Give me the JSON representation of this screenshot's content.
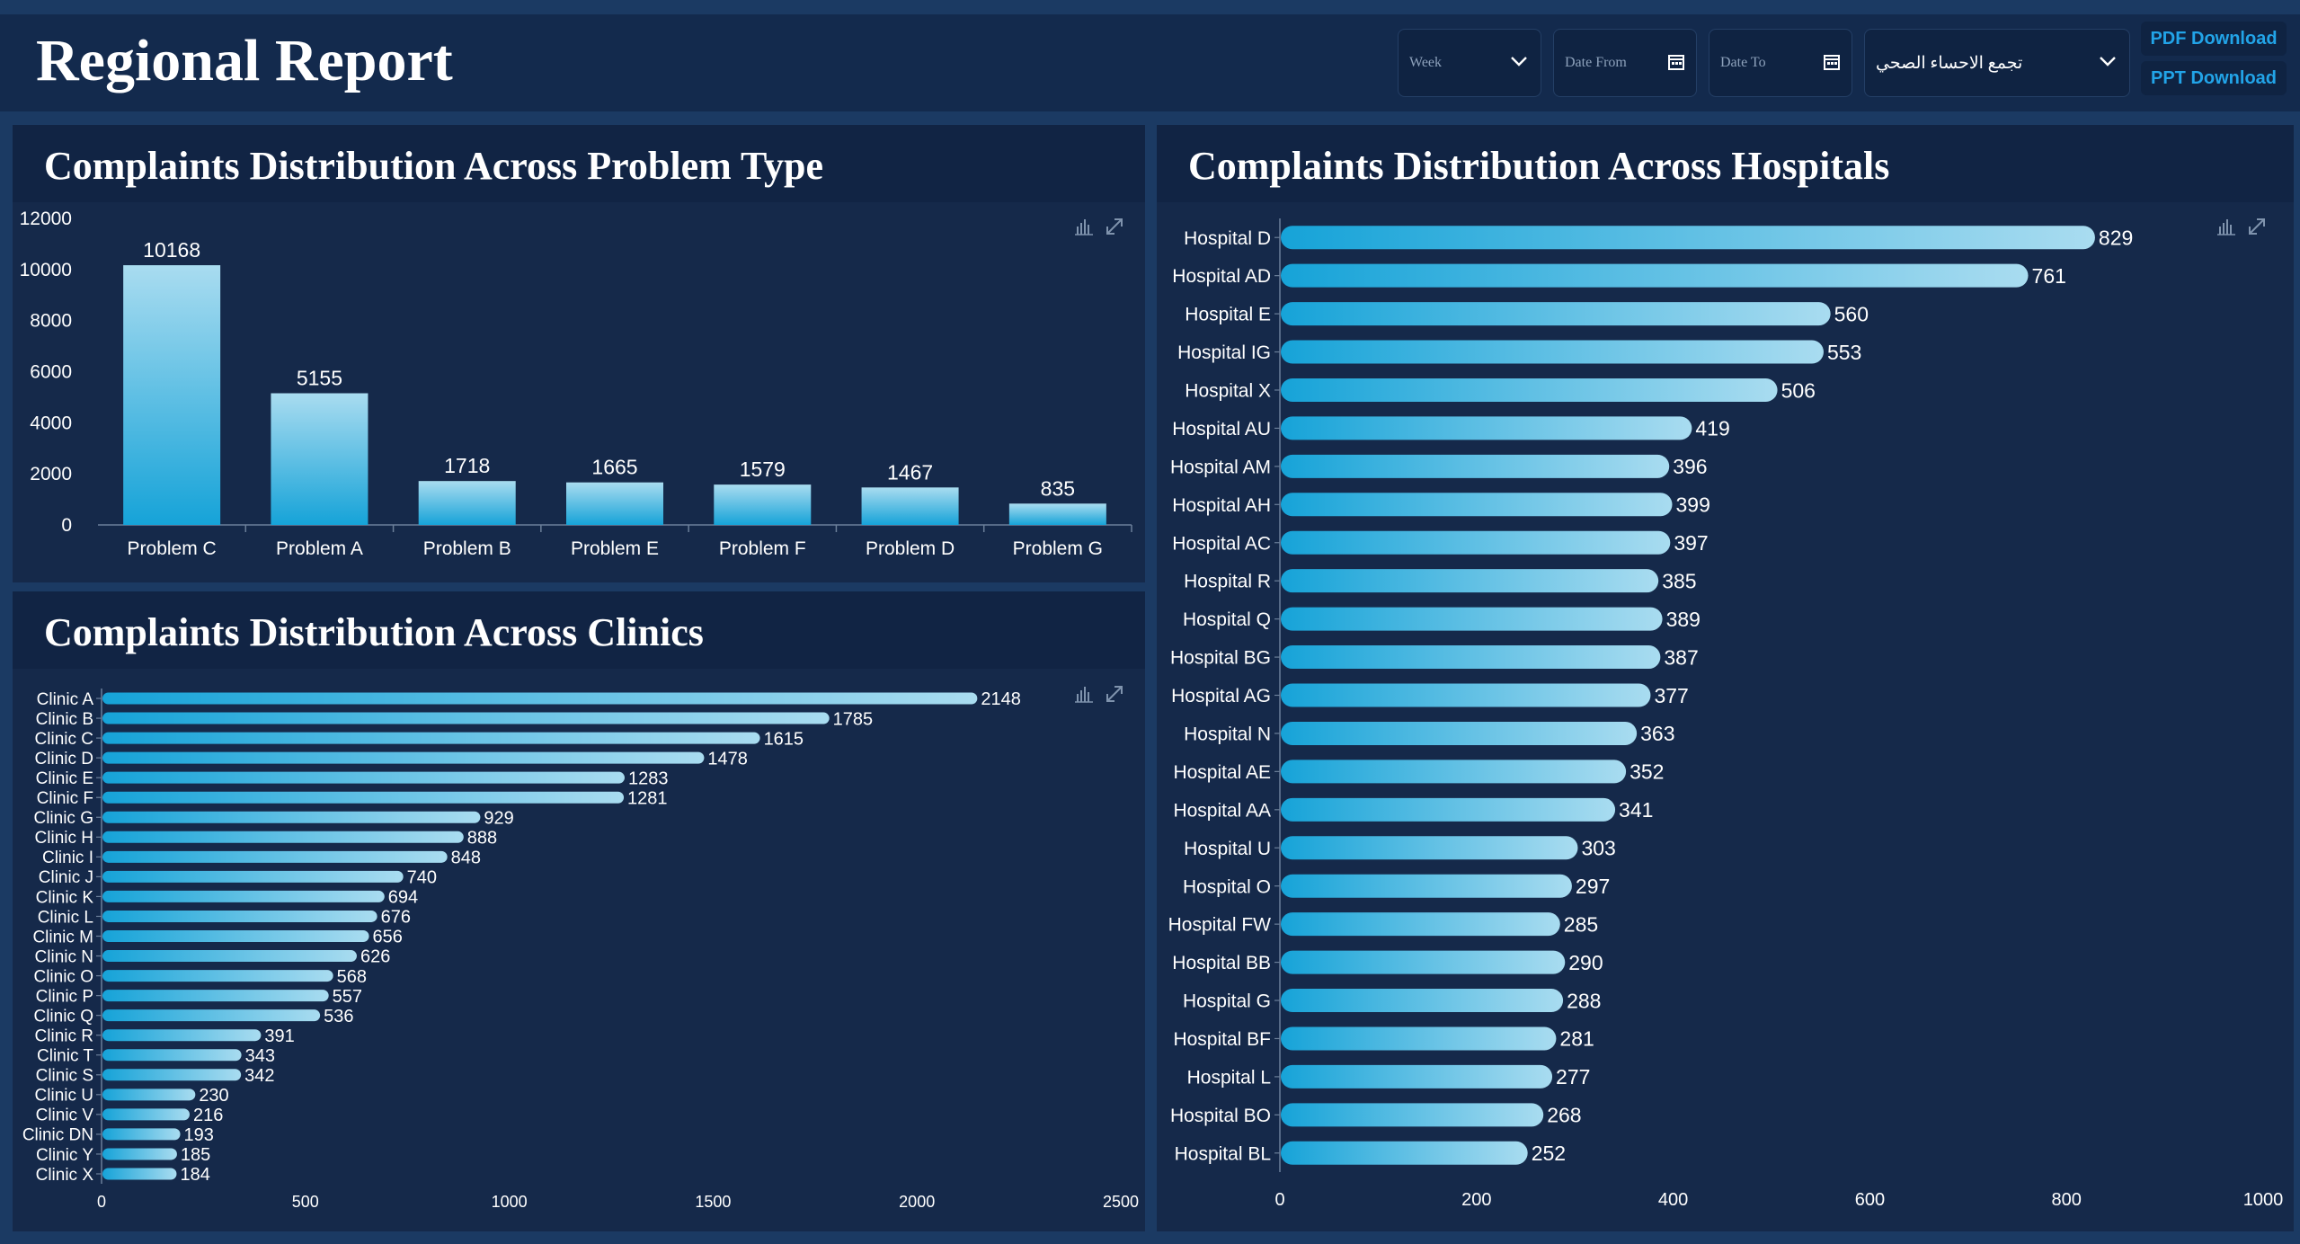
{
  "header": {
    "title": "Regional Report",
    "week_placeholder": "Week",
    "date_from_placeholder": "Date From",
    "date_to_placeholder": "Date To",
    "region_value": "تجمع الاحساء الصحي",
    "pdf_label": "PDF Download",
    "ppt_label": "PPT Download"
  },
  "colors": {
    "background": "#1b3a63",
    "panel": "#15294a",
    "bar_light": "#a9dcf0",
    "bar_dark": "#16a3d8",
    "accent": "#22a4e8"
  },
  "panels": {
    "problem_type": {
      "title": "Complaints Distribution Across Problem Type"
    },
    "clinics": {
      "title": "Complaints Distribution Across Clinics"
    },
    "hospitals": {
      "title": "Complaints Distribution Across Hospitals"
    }
  },
  "chart_data": [
    {
      "id": "problem_type",
      "type": "bar",
      "title": "Complaints Distribution Across Problem Type",
      "categories": [
        "Problem C",
        "Problem A",
        "Problem B",
        "Problem E",
        "Problem F",
        "Problem D",
        "Problem G"
      ],
      "values": [
        10168,
        5155,
        1718,
        1665,
        1579,
        1467,
        835
      ],
      "ylim": [
        0,
        12000
      ],
      "yticks": [
        0,
        2000,
        4000,
        6000,
        8000,
        10000,
        12000
      ],
      "grid": false
    },
    {
      "id": "clinics",
      "type": "bar",
      "orientation": "horizontal",
      "title": "Complaints Distribution Across Clinics",
      "categories": [
        "Clinic A",
        "Clinic B",
        "Clinic C",
        "Clinic D",
        "Clinic E",
        "Clinic F",
        "Clinic G",
        "Clinic H",
        "Clinic I",
        "Clinic J",
        "Clinic K",
        "Clinic L",
        "Clinic M",
        "Clinic N",
        "Clinic O",
        "Clinic P",
        "Clinic Q",
        "Clinic R",
        "Clinic T",
        "Clinic S",
        "Clinic U",
        "Clinic V",
        "Clinic DN",
        "Clinic Y",
        "Clinic X"
      ],
      "values": [
        2148,
        1785,
        1615,
        1478,
        1283,
        1281,
        929,
        888,
        848,
        740,
        694,
        676,
        656,
        626,
        568,
        557,
        536,
        391,
        343,
        342,
        230,
        216,
        193,
        185,
        184
      ],
      "xlim": [
        0,
        2500
      ],
      "xticks": [
        0,
        500,
        1000,
        1500,
        2000,
        2500
      ],
      "grid": false
    },
    {
      "id": "hospitals",
      "type": "bar",
      "orientation": "horizontal",
      "title": "Complaints Distribution Across Hospitals",
      "categories": [
        "Hospital D",
        "Hospital AD",
        "Hospital E",
        "Hospital IG",
        "Hospital X",
        "Hospital AU",
        "Hospital AM",
        "Hospital AH",
        "Hospital AC",
        "Hospital R",
        "Hospital Q",
        "Hospital BG",
        "Hospital AG",
        "Hospital N",
        "Hospital AE",
        "Hospital AA",
        "Hospital U",
        "Hospital O",
        "Hospital FW",
        "Hospital BB",
        "Hospital G",
        "Hospital BF",
        "Hospital L",
        "Hospital BO",
        "Hospital BL"
      ],
      "values": [
        829,
        761,
        560,
        553,
        506,
        419,
        396,
        399,
        397,
        385,
        389,
        387,
        377,
        363,
        352,
        341,
        303,
        297,
        285,
        290,
        288,
        281,
        277,
        268,
        252
      ],
      "xlim": [
        0,
        1000
      ],
      "xticks": [
        0,
        200,
        400,
        600,
        800,
        1000
      ],
      "grid": false
    }
  ]
}
